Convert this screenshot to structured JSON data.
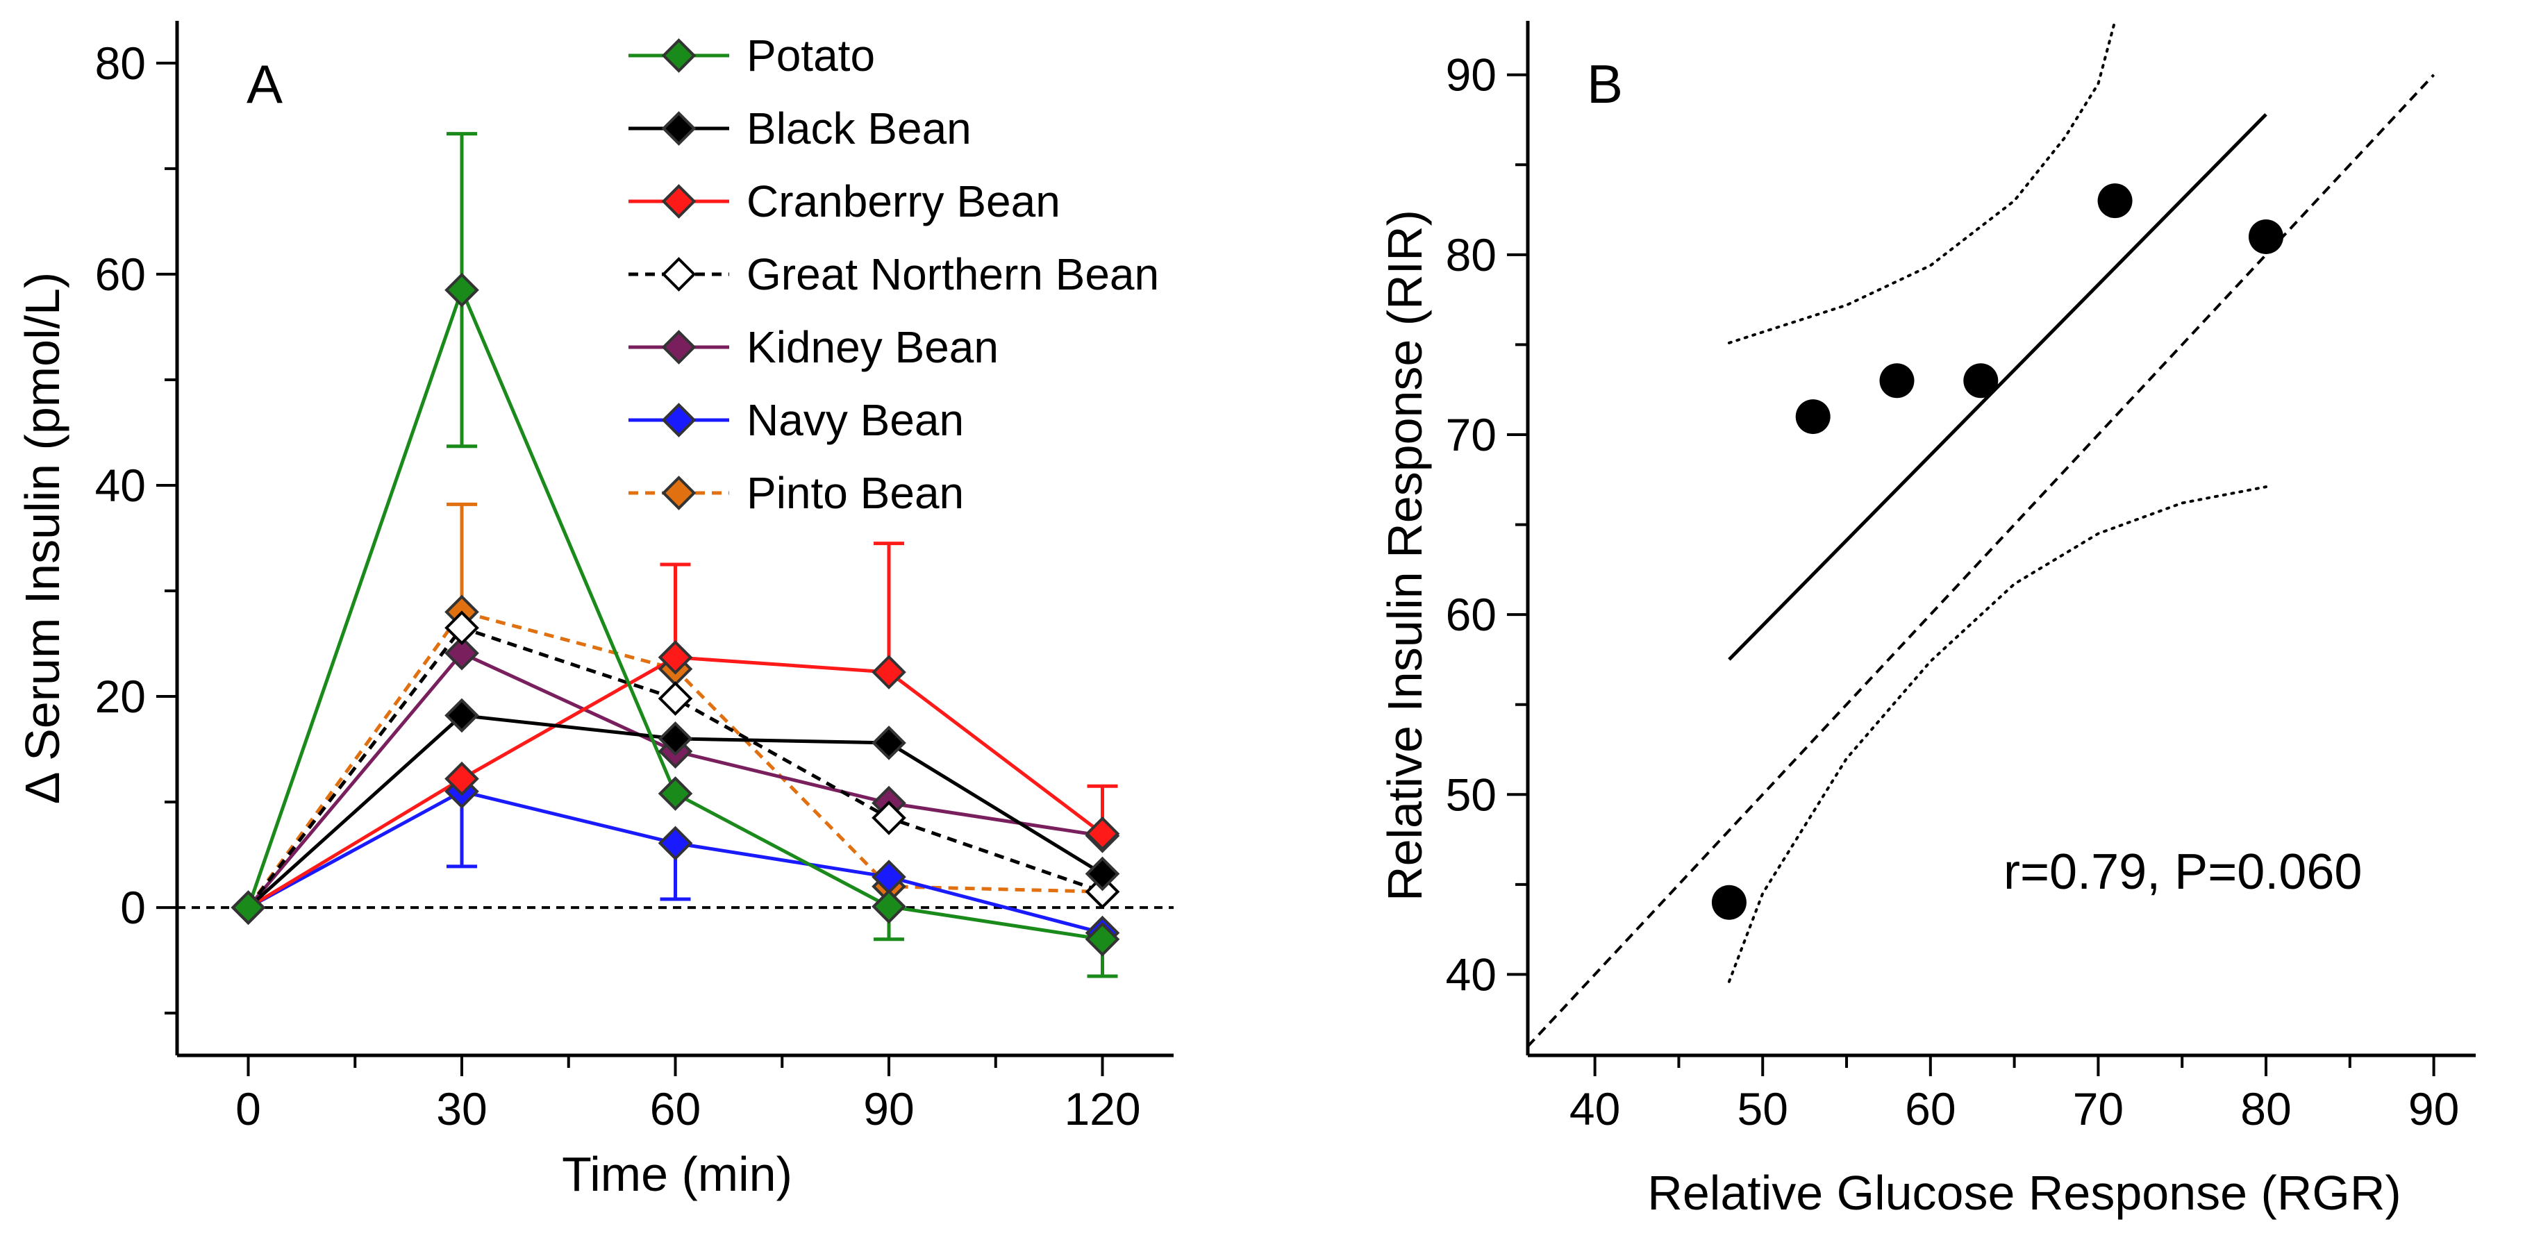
{
  "chart_data": [
    {
      "panel": "A",
      "type": "line",
      "xlabel": "Time (min)",
      "ylabel": "Δ Serum Insulin (pmol/L)",
      "x": [
        0,
        30,
        60,
        90,
        120
      ],
      "xlim": [
        -10,
        130
      ],
      "ylim": [
        -14,
        84
      ],
      "xticks": [
        "0",
        "30",
        "60",
        "90",
        "120"
      ],
      "yticks": [
        "0",
        "20",
        "40",
        "60",
        "80"
      ],
      "reference_line_y": 0,
      "legend_position": "top",
      "series": [
        {
          "name": "Potato",
          "color": "#1a8a1a",
          "marker": "filled-diamond",
          "dash": "solid",
          "values": [
            0,
            58.5,
            10.8,
            0.1,
            -3.0
          ],
          "error_upper": [
            null,
            73.3,
            null,
            null,
            -3.0
          ],
          "error_lower": [
            null,
            43.7,
            null,
            -3.0,
            -6.5
          ]
        },
        {
          "name": "Black Bean",
          "color": "#000000",
          "marker": "filled-diamond",
          "dash": "solid",
          "values": [
            0,
            18.2,
            16.0,
            15.6,
            3.2
          ]
        },
        {
          "name": "Cranberry Bean",
          "color": "#ff1a1a",
          "marker": "filled-diamond",
          "dash": "solid",
          "values": [
            0,
            12.2,
            23.7,
            22.3,
            7.0
          ],
          "error_upper": [
            null,
            null,
            32.5,
            34.5,
            11.5
          ]
        },
        {
          "name": "Great Northern Bean",
          "color": "#000000",
          "marker": "open-diamond",
          "dash": "dashed",
          "values": [
            0,
            26.5,
            19.8,
            8.5,
            1.5
          ]
        },
        {
          "name": "Kidney Bean",
          "color": "#7a1f5e",
          "marker": "filled-diamond",
          "dash": "solid",
          "values": [
            0,
            24.1,
            14.8,
            9.9,
            6.8
          ]
        },
        {
          "name": "Navy Bean",
          "color": "#1a1aff",
          "marker": "filled-diamond",
          "dash": "solid",
          "values": [
            0,
            11.0,
            6.1,
            2.9,
            -2.4
          ],
          "error_lower": [
            null,
            3.9,
            0.8,
            null,
            null
          ]
        },
        {
          "name": "Pinto Bean",
          "color": "#e07010",
          "marker": "filled-diamond",
          "dash": "dashed",
          "values": [
            0,
            28.0,
            22.6,
            2.0,
            1.5
          ],
          "error_upper": [
            null,
            38.2,
            null,
            null,
            null
          ]
        }
      ]
    },
    {
      "panel": "B",
      "type": "scatter",
      "xlabel": "Relative Glucose Response (RGR)",
      "ylabel": "Relative Insulin Response (RIR)",
      "xlim": [
        36,
        92.5
      ],
      "ylim": [
        35.5,
        93
      ],
      "xticks": [
        "40",
        "50",
        "60",
        "70",
        "80",
        "90"
      ],
      "yticks": [
        "40",
        "50",
        "60",
        "70",
        "80",
        "90"
      ],
      "points": [
        [
          48,
          44
        ],
        [
          53,
          71
        ],
        [
          58,
          73
        ],
        [
          63,
          73
        ],
        [
          71,
          83
        ],
        [
          80,
          81
        ]
      ],
      "regression_line": [
        [
          48,
          57.5
        ],
        [
          80,
          87.8
        ]
      ],
      "identity_line": [
        [
          36,
          36
        ],
        [
          90,
          90
        ]
      ],
      "ci_upper": [
        [
          48,
          75.1
        ],
        [
          55,
          77.2
        ],
        [
          60,
          79.4
        ],
        [
          65,
          83.0
        ],
        [
          68,
          86.5
        ],
        [
          70,
          89.5
        ],
        [
          71,
          93
        ]
      ],
      "ci_lower": [
        [
          48,
          39.6
        ],
        [
          50,
          44.5
        ],
        [
          55,
          52.0
        ],
        [
          60,
          57.4
        ],
        [
          65,
          61.7
        ],
        [
          70,
          64.5
        ],
        [
          75,
          66.2
        ],
        [
          80,
          67.1
        ]
      ],
      "annotation": "r=0.79, P=0.060"
    }
  ]
}
